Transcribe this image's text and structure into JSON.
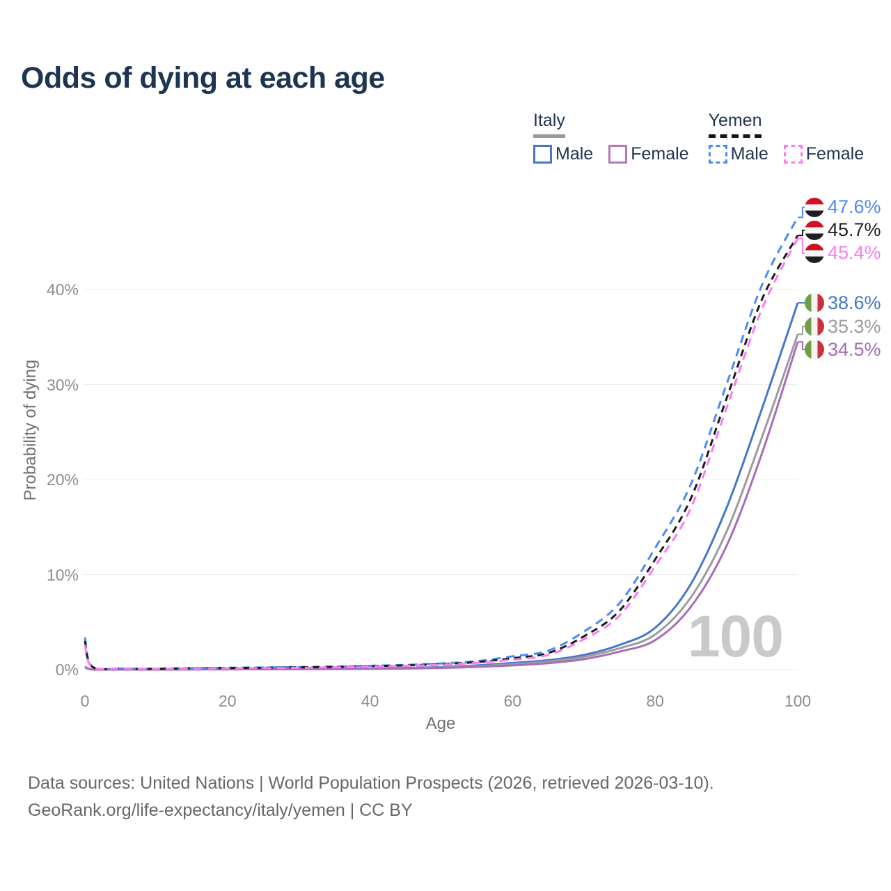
{
  "title": "Odds of dying at each age",
  "legend": {
    "groups": [
      {
        "label": "Italy",
        "style": "solid"
      },
      {
        "label": "Yemen",
        "style": "dashed"
      }
    ],
    "items": [
      {
        "label": "Male",
        "color": "#4678c8",
        "dashed": false
      },
      {
        "label": "Female",
        "color": "#b678b8",
        "dashed": false
      },
      {
        "label": "Male",
        "color": "#4b8af5",
        "dashed": true
      },
      {
        "label": "Female",
        "color": "#fb7bf0",
        "dashed": true
      }
    ]
  },
  "flags": {
    "yemen": {
      "colors": [
        "#ce1126",
        "#f7f7f7",
        "#1d1d22"
      ]
    },
    "italy": {
      "colors": [
        "#6f9e49",
        "#f4f5f1",
        "#cd2f3c"
      ]
    }
  },
  "chart_data": {
    "type": "line",
    "title": "Odds of dying at each age",
    "xlabel": "Age",
    "ylabel": "Probability of dying",
    "hover_age_label": "100",
    "xlim": [
      0,
      100
    ],
    "ylim": [
      0,
      48
    ],
    "grid": "horizontal",
    "legend_position": "top-right",
    "x_ticks": [
      {
        "value": 0,
        "label": "0"
      },
      {
        "value": 20,
        "label": "20"
      },
      {
        "value": 40,
        "label": "40"
      },
      {
        "value": 60,
        "label": "60"
      },
      {
        "value": 80,
        "label": "80"
      },
      {
        "value": 100,
        "label": "100"
      }
    ],
    "y_ticks": [
      {
        "value": 0,
        "label": "0%"
      },
      {
        "value": 10,
        "label": "10%"
      },
      {
        "value": 20,
        "label": "20%"
      },
      {
        "value": 30,
        "label": "30%"
      },
      {
        "value": 40,
        "label": "40%"
      }
    ],
    "ages": [
      0,
      1,
      5,
      10,
      15,
      20,
      25,
      30,
      35,
      40,
      45,
      50,
      55,
      60,
      65,
      70,
      75,
      80,
      85,
      90,
      95,
      100
    ],
    "series": [
      {
        "id": "italy-male",
        "country": "Italy",
        "sex": "Male",
        "style": "solid",
        "color": "#4678c8",
        "flag": "italy",
        "end_label": "38.6%",
        "end_value": 38.6,
        "values": [
          0.32,
          0.03,
          0.01,
          0.01,
          0.04,
          0.06,
          0.07,
          0.08,
          0.09,
          0.12,
          0.18,
          0.28,
          0.45,
          0.7,
          1.0,
          1.55,
          2.6,
          4.4,
          9.0,
          17.0,
          27.5,
          38.6
        ]
      },
      {
        "id": "italy-both",
        "country": "Italy",
        "sex": "Both sexes",
        "style": "solid",
        "color": "#9c9c9c",
        "flag": "italy",
        "end_label": "35.3%",
        "end_value": 35.3,
        "values": [
          0.29,
          0.03,
          0.01,
          0.01,
          0.03,
          0.04,
          0.05,
          0.06,
          0.08,
          0.1,
          0.15,
          0.23,
          0.37,
          0.57,
          0.85,
          1.35,
          2.25,
          3.7,
          7.6,
          14.5,
          24.5,
          35.3
        ]
      },
      {
        "id": "italy-female",
        "country": "Italy",
        "sex": "Female",
        "style": "solid",
        "color": "#a76db6",
        "flag": "italy",
        "end_label": "34.5%",
        "end_value": 34.5,
        "values": [
          0.26,
          0.02,
          0.01,
          0.01,
          0.02,
          0.03,
          0.04,
          0.05,
          0.06,
          0.08,
          0.12,
          0.18,
          0.29,
          0.45,
          0.68,
          1.1,
          1.9,
          3.1,
          6.6,
          13.0,
          22.8,
          34.5
        ]
      },
      {
        "id": "yemen-male",
        "country": "Yemen",
        "sex": "Male",
        "style": "dashed",
        "color": "#4b8af5",
        "flag": "yemen",
        "end_label": "47.6%",
        "end_value": 47.6,
        "values": [
          3.4,
          0.35,
          0.12,
          0.1,
          0.16,
          0.2,
          0.23,
          0.27,
          0.32,
          0.4,
          0.5,
          0.65,
          0.9,
          1.4,
          2.0,
          4.0,
          7.0,
          12.8,
          19.5,
          30.0,
          40.5,
          47.6
        ]
      },
      {
        "id": "yemen-both",
        "country": "Yemen",
        "sex": "Both sexes",
        "style": "dashed",
        "color": "#1c1c1c",
        "flag": "yemen",
        "end_label": "45.7%",
        "end_value": 45.7,
        "values": [
          3.0,
          0.32,
          0.11,
          0.09,
          0.14,
          0.17,
          0.2,
          0.24,
          0.29,
          0.36,
          0.45,
          0.58,
          0.8,
          1.2,
          1.75,
          3.5,
          6.2,
          11.6,
          18.0,
          28.5,
          39.0,
          45.7
        ]
      },
      {
        "id": "yemen-female",
        "country": "Yemen",
        "sex": "Female",
        "style": "dashed",
        "color": "#fb7bf0",
        "flag": "yemen",
        "end_label": "45.4%",
        "end_value": 45.4,
        "values": [
          2.6,
          0.3,
          0.1,
          0.08,
          0.11,
          0.13,
          0.16,
          0.19,
          0.24,
          0.31,
          0.4,
          0.52,
          0.72,
          1.05,
          1.55,
          3.2,
          5.7,
          10.9,
          17.0,
          27.5,
          38.0,
          45.4
        ]
      }
    ]
  },
  "footer": {
    "line1": "Data sources: United Nations | World Population Prospects (2026, retrieved 2026-03-10).",
    "line2": "GeoRank.org/life-expectancy/italy/yemen | CC BY"
  }
}
